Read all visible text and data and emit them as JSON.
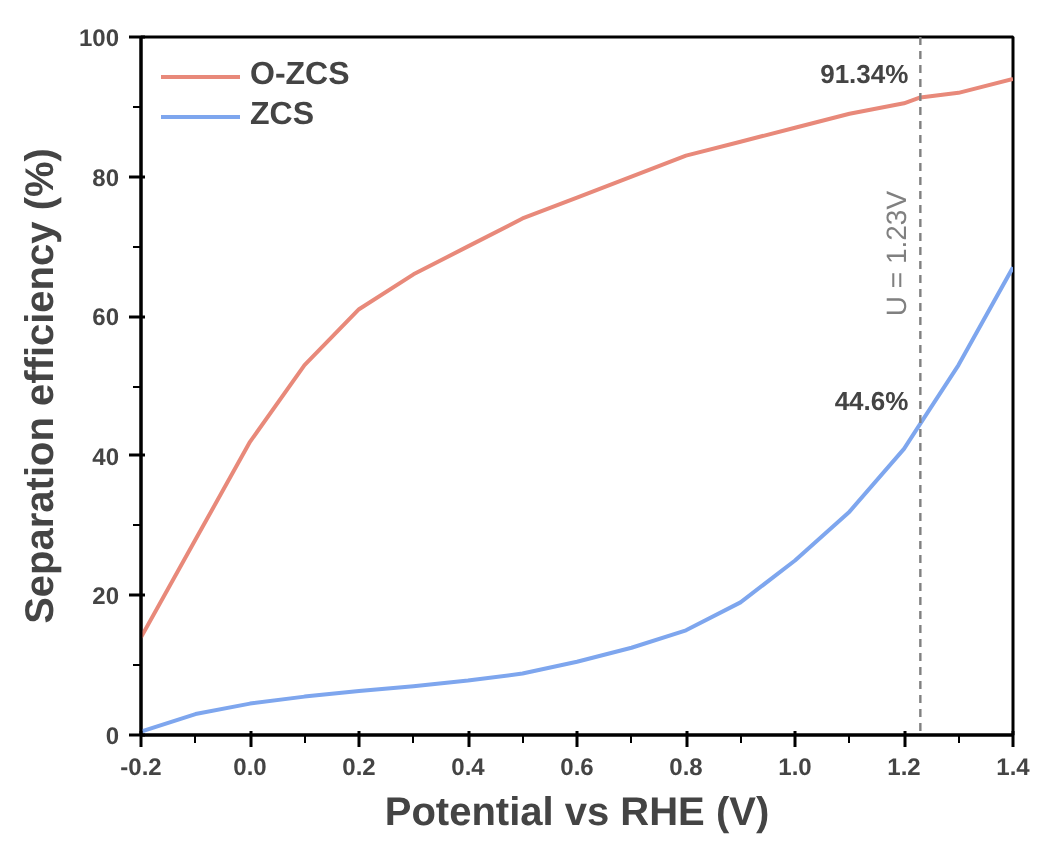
{
  "chart_data": {
    "type": "line",
    "xlabel": "Potential vs RHE (V)",
    "ylabel": "Separation efficiency (%)",
    "x": [
      -0.2,
      -0.1,
      0.0,
      0.1,
      0.2,
      0.3,
      0.4,
      0.5,
      0.6,
      0.7,
      0.8,
      0.9,
      1.0,
      1.1,
      1.2,
      1.23,
      1.3,
      1.4
    ],
    "series": [
      {
        "name": "O-ZCS",
        "color": "#e8897a",
        "values": [
          14,
          28,
          42,
          53,
          61,
          66,
          70,
          74,
          77,
          80,
          83,
          85,
          87,
          89,
          90.5,
          91.34,
          92,
          94
        ]
      },
      {
        "name": "ZCS",
        "color": "#7ea6ee",
        "values": [
          0.5,
          3,
          4.5,
          5.5,
          6.3,
          7,
          7.8,
          8.8,
          10.5,
          12.5,
          15,
          19,
          25,
          32,
          41,
          44.6,
          53,
          67
        ]
      }
    ],
    "xlim": [
      -0.2,
      1.4
    ],
    "xticks": [
      -0.2,
      {
        "value": 0,
        "label": "0.0"
      },
      0.2,
      0.4,
      0.6,
      0.8,
      {
        "value": 1,
        "label": "1.0"
      },
      1.2,
      1.4
    ],
    "ylim": [
      0,
      100
    ],
    "yticks": [
      0,
      20,
      40,
      60,
      80,
      100
    ],
    "ref_lines": [
      {
        "axis": "x",
        "value": 1.23,
        "label": "U = 1.23V",
        "color": "#808080",
        "line_style": "dashed"
      }
    ],
    "annotations": [
      {
        "text": "91.34%",
        "x": 1.23,
        "y": 91.34
      },
      {
        "text": "44.6%",
        "x": 1.23,
        "y": 44.6
      }
    ],
    "legend": "top left",
    "grid": false,
    "marker": "none",
    "line_style": "solid"
  }
}
